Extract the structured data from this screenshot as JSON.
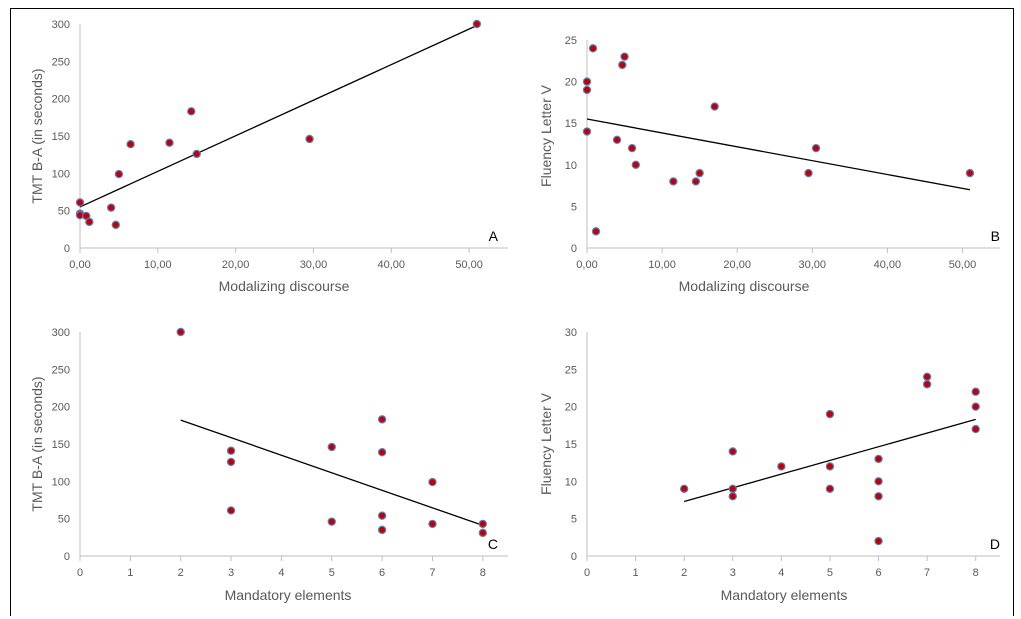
{
  "chart_data": [
    {
      "panel": "A",
      "type": "scatter",
      "xlabel": "Modalizing discourse",
      "ylabel": "TMT B-A (in seconds)",
      "xlim": [
        0,
        55
      ],
      "ylim": [
        0,
        300
      ],
      "xticks": [
        0,
        10,
        20,
        30,
        40,
        50
      ],
      "xtick_labels": [
        "0,00",
        "10,00",
        "20,00",
        "30,00",
        "40,00",
        "50,00"
      ],
      "yticks": [
        0,
        50,
        100,
        150,
        200,
        250,
        300
      ],
      "ytick_labels": [
        "0",
        "50",
        "100",
        "150",
        "200",
        "250",
        "300"
      ],
      "points": [
        {
          "x": 0.0,
          "y": 61
        },
        {
          "x": 0.0,
          "y": 46
        },
        {
          "x": 0.0,
          "y": 44
        },
        {
          "x": 0.8,
          "y": 43
        },
        {
          "x": 1.2,
          "y": 35
        },
        {
          "x": 4.0,
          "y": 54
        },
        {
          "x": 4.6,
          "y": 31
        },
        {
          "x": 5.0,
          "y": 99
        },
        {
          "x": 6.5,
          "y": 139
        },
        {
          "x": 11.5,
          "y": 141
        },
        {
          "x": 14.3,
          "y": 183
        },
        {
          "x": 15.0,
          "y": 126
        },
        {
          "x": 29.5,
          "y": 146
        },
        {
          "x": 51.0,
          "y": 300
        }
      ],
      "trendline": {
        "x": [
          0,
          51
        ],
        "y": [
          55,
          298
        ]
      },
      "grid": false
    },
    {
      "panel": "B",
      "type": "scatter",
      "xlabel": "Modalizing discourse",
      "ylabel": "Fluency Letter V",
      "xlim": [
        0,
        55
      ],
      "ylim": [
        0,
        25
      ],
      "xticks": [
        0,
        10,
        20,
        30,
        40,
        50
      ],
      "xtick_labels": [
        "0,00",
        "10,00",
        "20,00",
        "30,00",
        "40,00",
        "50,00"
      ],
      "yticks": [
        0,
        5,
        10,
        15,
        20,
        25
      ],
      "ytick_labels": [
        "0",
        "5",
        "10",
        "15",
        "20",
        "25"
      ],
      "points": [
        {
          "x": 0.0,
          "y": 20
        },
        {
          "x": 0.0,
          "y": 19
        },
        {
          "x": 0.0,
          "y": 14
        },
        {
          "x": 0.8,
          "y": 24
        },
        {
          "x": 1.2,
          "y": 2
        },
        {
          "x": 4.0,
          "y": 13
        },
        {
          "x": 4.7,
          "y": 22
        },
        {
          "x": 5.0,
          "y": 23
        },
        {
          "x": 6.0,
          "y": 12
        },
        {
          "x": 6.5,
          "y": 10
        },
        {
          "x": 11.5,
          "y": 8
        },
        {
          "x": 14.5,
          "y": 8
        },
        {
          "x": 15.0,
          "y": 9
        },
        {
          "x": 17.0,
          "y": 17
        },
        {
          "x": 29.5,
          "y": 9
        },
        {
          "x": 30.5,
          "y": 12
        },
        {
          "x": 51.0,
          "y": 9
        }
      ],
      "trendline": {
        "x": [
          0,
          51
        ],
        "y": [
          15.5,
          7.0
        ]
      },
      "grid": false
    },
    {
      "panel": "C",
      "type": "scatter",
      "xlabel": "Mandatory elements",
      "ylabel": "TMT B-A (in seconds)",
      "xlim": [
        0,
        8.5
      ],
      "ylim": [
        0,
        300
      ],
      "xticks": [
        0,
        1,
        2,
        3,
        4,
        5,
        6,
        7,
        8
      ],
      "xtick_labels": [
        "0",
        "1",
        "2",
        "3",
        "4",
        "5",
        "6",
        "7",
        "8"
      ],
      "yticks": [
        0,
        50,
        100,
        150,
        200,
        250,
        300
      ],
      "ytick_labels": [
        "0",
        "50",
        "100",
        "150",
        "200",
        "250",
        "300"
      ],
      "points": [
        {
          "x": 2,
          "y": 300
        },
        {
          "x": 3,
          "y": 141
        },
        {
          "x": 3,
          "y": 126
        },
        {
          "x": 3,
          "y": 61
        },
        {
          "x": 5,
          "y": 146
        },
        {
          "x": 5,
          "y": 46
        },
        {
          "x": 6,
          "y": 183
        },
        {
          "x": 6,
          "y": 139
        },
        {
          "x": 6,
          "y": 54
        },
        {
          "x": 6,
          "y": 35
        },
        {
          "x": 7,
          "y": 99
        },
        {
          "x": 7,
          "y": 43
        },
        {
          "x": 8,
          "y": 43
        },
        {
          "x": 8,
          "y": 31
        }
      ],
      "trendline": {
        "x": [
          2,
          8
        ],
        "y": [
          182,
          41
        ]
      },
      "grid": false
    },
    {
      "panel": "D",
      "type": "scatter",
      "xlabel": "Mandatory elements",
      "ylabel": "Fluency Letter V",
      "xlim": [
        0,
        8.5
      ],
      "ylim": [
        0,
        30
      ],
      "xticks": [
        0,
        1,
        2,
        3,
        4,
        5,
        6,
        7,
        8
      ],
      "xtick_labels": [
        "0",
        "1",
        "2",
        "3",
        "4",
        "5",
        "6",
        "7",
        "8"
      ],
      "yticks": [
        0,
        5,
        10,
        15,
        20,
        25,
        30
      ],
      "ytick_labels": [
        "0",
        "5",
        "10",
        "15",
        "20",
        "25",
        "30"
      ],
      "points": [
        {
          "x": 2,
          "y": 9
        },
        {
          "x": 3,
          "y": 14
        },
        {
          "x": 3,
          "y": 9
        },
        {
          "x": 3,
          "y": 8
        },
        {
          "x": 4,
          "y": 12
        },
        {
          "x": 5,
          "y": 19
        },
        {
          "x": 5,
          "y": 12
        },
        {
          "x": 5,
          "y": 9
        },
        {
          "x": 6,
          "y": 13
        },
        {
          "x": 6,
          "y": 10
        },
        {
          "x": 6,
          "y": 8
        },
        {
          "x": 6,
          "y": 2
        },
        {
          "x": 7,
          "y": 24
        },
        {
          "x": 7,
          "y": 23
        },
        {
          "x": 8,
          "y": 22
        },
        {
          "x": 8,
          "y": 20
        },
        {
          "x": 8,
          "y": 17
        }
      ],
      "trendline": {
        "x": [
          2,
          8
        ],
        "y": [
          7.3,
          18.3
        ]
      },
      "grid": false
    }
  ],
  "style": {
    "marker_fill": "#c00000",
    "marker_stroke": "#5b7fc4",
    "trendline_color": "#000000",
    "axis_color": "#bfbfbf",
    "text_color": "#595959"
  }
}
